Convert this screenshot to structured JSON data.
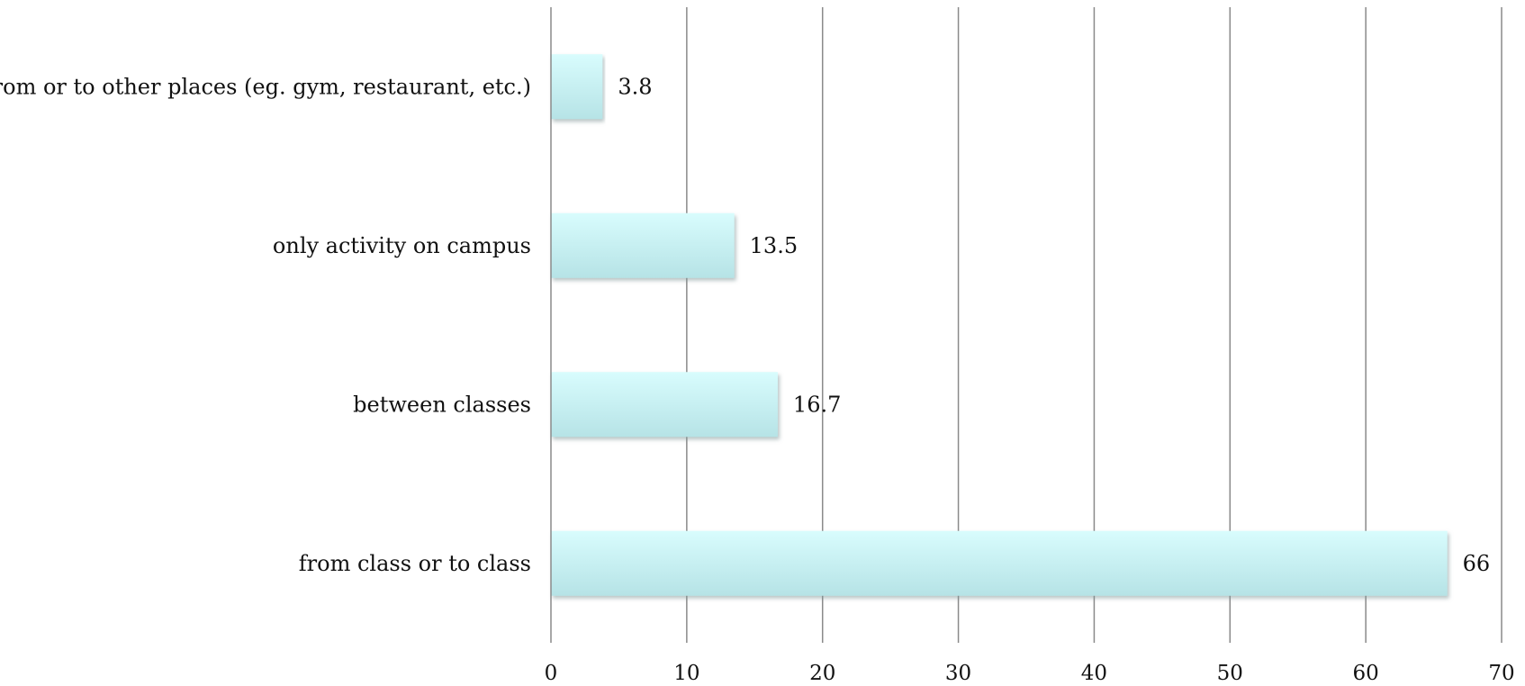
{
  "chart_data": {
    "type": "bar",
    "orientation": "horizontal",
    "title": "",
    "xlabel": "",
    "ylabel": "",
    "categories": [
      "from or to other places (eg. gym, restaurant, etc.)",
      "only activity on campus",
      "between classes",
      "from class or to class"
    ],
    "values": [
      3.8,
      13.5,
      16.7,
      66
    ],
    "data_labels": [
      "3.8",
      "13.5",
      "16.7",
      "66"
    ],
    "xlim": [
      0,
      70
    ],
    "x_ticks": [
      0,
      10,
      20,
      30,
      40,
      50,
      60,
      70
    ],
    "x_tick_labels": [
      "0",
      "10",
      "20",
      "30",
      "40",
      "50",
      "60",
      "70"
    ],
    "grid": "vertical",
    "legend": "none",
    "colors": {
      "bar_top": "#d8fcfd",
      "bar_bottom": "#b6e3e6",
      "bar_shadow": "#9ab0b3",
      "grid": "#8a8a8a"
    }
  }
}
